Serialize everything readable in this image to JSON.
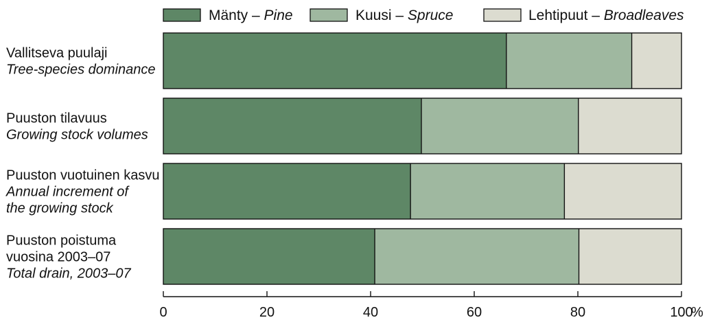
{
  "chart_data": {
    "type": "bar",
    "orientation": "horizontal",
    "stacked": true,
    "categories": [
      {
        "label_lines": [
          {
            "text": "Vallitseva puulaji",
            "italic": false
          },
          {
            "text": "Tree-species dominance",
            "italic": true
          }
        ]
      },
      {
        "label_lines": [
          {
            "text": "Puuston tilavuus",
            "italic": false
          },
          {
            "text": "Growing stock volumes",
            "italic": true
          }
        ]
      },
      {
        "label_lines": [
          {
            "text": "Puuston vuotuinen kasvu",
            "italic": false
          },
          {
            "text": "Annual increment of",
            "italic": true
          },
          {
            "text": "the growing stock",
            "italic": true
          }
        ]
      },
      {
        "label_lines": [
          {
            "text": "Puuston poistuma",
            "italic": false
          },
          {
            "text": "vuosina 2003–07",
            "italic": false
          },
          {
            "text": "Total drain, 2003–07",
            "italic": true
          }
        ]
      }
    ],
    "series": [
      {
        "name_fi": "Mänty – ",
        "name_en": "Pine",
        "color": "#5e8766",
        "values": [
          66.2,
          49.8,
          47.7,
          40.8
        ]
      },
      {
        "name_fi": "Kuusi – ",
        "name_en": "Spruce",
        "color": "#9fb8a0",
        "values": [
          24.2,
          30.3,
          29.7,
          39.4
        ]
      },
      {
        "name_fi": "Lehtipuut – ",
        "name_en": "Broadleaves",
        "color": "#dcdcd0",
        "values": [
          9.6,
          19.9,
          22.6,
          19.8
        ]
      }
    ],
    "xlim": [
      0,
      100
    ],
    "x_ticks": [
      0,
      20,
      40,
      60,
      80,
      100
    ],
    "x_unit": "%",
    "grid": false,
    "legend_position": "top"
  }
}
